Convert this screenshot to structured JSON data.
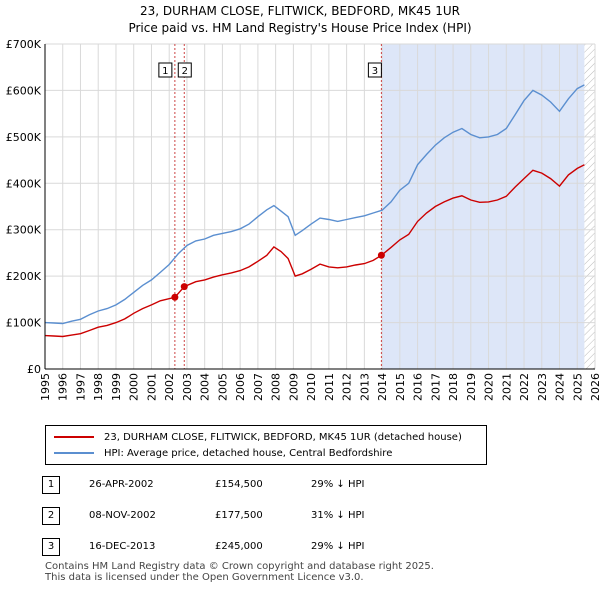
{
  "title": "23, DURHAM CLOSE, FLITWICK, BEDFORD, MK45 1UR",
  "subtitle": "Price paid vs. HM Land Registry's House Price Index (HPI)",
  "chart_data": {
    "type": "line",
    "xlim": [
      1995,
      2026
    ],
    "ylim": [
      0,
      700000
    ],
    "y_ticks": [
      0,
      100000,
      200000,
      300000,
      400000,
      500000,
      600000,
      700000
    ],
    "y_tick_labels": [
      "£0",
      "£100K",
      "£200K",
      "£300K",
      "£400K",
      "£500K",
      "£600K",
      "£700K"
    ],
    "x_ticks": [
      1995,
      1996,
      1997,
      1998,
      1999,
      2000,
      2001,
      2002,
      2003,
      2004,
      2005,
      2006,
      2007,
      2008,
      2009,
      2010,
      2011,
      2012,
      2013,
      2014,
      2015,
      2016,
      2017,
      2018,
      2019,
      2020,
      2021,
      2022,
      2023,
      2024,
      2025,
      2026
    ],
    "grid": true,
    "colors": {
      "price": "#cc0000",
      "hpi": "#5b8fd0",
      "shade": "#dde6f8",
      "marker_line": "#cc4444",
      "grid": "#d9d9d9"
    },
    "series": [
      {
        "name": "23, DURHAM CLOSE, FLITWICK, BEDFORD, MK45 1UR (detached house)",
        "color": "#cc0000",
        "points": [
          [
            1995.0,
            72000
          ],
          [
            1995.5,
            71000
          ],
          [
            1996.0,
            70000
          ],
          [
            1996.5,
            73000
          ],
          [
            1997.0,
            76000
          ],
          [
            1997.5,
            83000
          ],
          [
            1998.0,
            90000
          ],
          [
            1998.5,
            94000
          ],
          [
            1999.0,
            100000
          ],
          [
            1999.5,
            108000
          ],
          [
            2000.0,
            120000
          ],
          [
            2000.5,
            130000
          ],
          [
            2001.0,
            138000
          ],
          [
            2001.5,
            147000
          ],
          [
            2002.32,
            154500
          ],
          [
            2002.85,
            177500
          ],
          [
            2003.5,
            188000
          ],
          [
            2004.0,
            192000
          ],
          [
            2004.5,
            198000
          ],
          [
            2005.0,
            203000
          ],
          [
            2005.5,
            207000
          ],
          [
            2006.0,
            212000
          ],
          [
            2006.5,
            220000
          ],
          [
            2007.0,
            232000
          ],
          [
            2007.5,
            245000
          ],
          [
            2007.9,
            263000
          ],
          [
            2008.3,
            253000
          ],
          [
            2008.7,
            238000
          ],
          [
            2009.1,
            200000
          ],
          [
            2009.5,
            205000
          ],
          [
            2010.0,
            215000
          ],
          [
            2010.5,
            226000
          ],
          [
            2011.0,
            220000
          ],
          [
            2011.5,
            218000
          ],
          [
            2012.0,
            220000
          ],
          [
            2012.5,
            224000
          ],
          [
            2013.0,
            227000
          ],
          [
            2013.5,
            234000
          ],
          [
            2013.96,
            245000
          ],
          [
            2014.5,
            262000
          ],
          [
            2015.0,
            278000
          ],
          [
            2015.5,
            290000
          ],
          [
            2016.0,
            318000
          ],
          [
            2016.5,
            336000
          ],
          [
            2017.0,
            350000
          ],
          [
            2017.5,
            360000
          ],
          [
            2018.0,
            368000
          ],
          [
            2018.5,
            373000
          ],
          [
            2019.0,
            364000
          ],
          [
            2019.5,
            359000
          ],
          [
            2020.0,
            360000
          ],
          [
            2020.5,
            364000
          ],
          [
            2021.0,
            372000
          ],
          [
            2021.5,
            392000
          ],
          [
            2022.0,
            410000
          ],
          [
            2022.5,
            428000
          ],
          [
            2023.0,
            422000
          ],
          [
            2023.5,
            410000
          ],
          [
            2024.0,
            394000
          ],
          [
            2024.5,
            418000
          ],
          [
            2025.0,
            432000
          ],
          [
            2025.4,
            440000
          ]
        ]
      },
      {
        "name": "HPI: Average price, detached house, Central Bedfordshire",
        "color": "#5b8fd0",
        "points": [
          [
            1995.0,
            100000
          ],
          [
            1995.5,
            99000
          ],
          [
            1996.0,
            98000
          ],
          [
            1996.5,
            103000
          ],
          [
            1997.0,
            107000
          ],
          [
            1997.5,
            117000
          ],
          [
            1998.0,
            125000
          ],
          [
            1998.5,
            130000
          ],
          [
            1999.0,
            138000
          ],
          [
            1999.5,
            150000
          ],
          [
            2000.0,
            165000
          ],
          [
            2000.5,
            180000
          ],
          [
            2001.0,
            192000
          ],
          [
            2001.5,
            208000
          ],
          [
            2002.0,
            225000
          ],
          [
            2002.5,
            248000
          ],
          [
            2003.0,
            266000
          ],
          [
            2003.5,
            276000
          ],
          [
            2004.0,
            280000
          ],
          [
            2004.5,
            288000
          ],
          [
            2005.0,
            292000
          ],
          [
            2005.5,
            296000
          ],
          [
            2006.0,
            302000
          ],
          [
            2006.5,
            312000
          ],
          [
            2007.0,
            328000
          ],
          [
            2007.5,
            343000
          ],
          [
            2007.9,
            352000
          ],
          [
            2008.3,
            340000
          ],
          [
            2008.7,
            328000
          ],
          [
            2009.1,
            288000
          ],
          [
            2009.5,
            298000
          ],
          [
            2010.0,
            312000
          ],
          [
            2010.5,
            325000
          ],
          [
            2011.0,
            322000
          ],
          [
            2011.5,
            318000
          ],
          [
            2012.0,
            322000
          ],
          [
            2012.5,
            326000
          ],
          [
            2013.0,
            330000
          ],
          [
            2013.5,
            336000
          ],
          [
            2014.0,
            342000
          ],
          [
            2014.5,
            360000
          ],
          [
            2015.0,
            385000
          ],
          [
            2015.5,
            400000
          ],
          [
            2016.0,
            440000
          ],
          [
            2016.5,
            462000
          ],
          [
            2017.0,
            482000
          ],
          [
            2017.5,
            498000
          ],
          [
            2018.0,
            510000
          ],
          [
            2018.5,
            518000
          ],
          [
            2019.0,
            505000
          ],
          [
            2019.5,
            498000
          ],
          [
            2020.0,
            500000
          ],
          [
            2020.5,
            505000
          ],
          [
            2021.0,
            518000
          ],
          [
            2021.5,
            548000
          ],
          [
            2022.0,
            578000
          ],
          [
            2022.5,
            600000
          ],
          [
            2023.0,
            590000
          ],
          [
            2023.5,
            575000
          ],
          [
            2024.0,
            555000
          ],
          [
            2024.5,
            582000
          ],
          [
            2025.0,
            604000
          ],
          [
            2025.4,
            612000
          ]
        ]
      }
    ],
    "sales": [
      {
        "label": "1",
        "x": 2002.32,
        "price": 154500
      },
      {
        "label": "2",
        "x": 2002.85,
        "price": 177500
      },
      {
        "label": "3",
        "x": 2013.96,
        "price": 245000
      }
    ],
    "shaded_range": [
      2013.96,
      2025.4
    ]
  },
  "legend": {
    "price_label": "23, DURHAM CLOSE, FLITWICK, BEDFORD, MK45 1UR (detached house)",
    "hpi_label": "HPI: Average price, detached house, Central Bedfordshire"
  },
  "transactions": [
    {
      "num": "1",
      "date": "26-APR-2002",
      "price": "£154,500",
      "rel": "29% ↓ HPI"
    },
    {
      "num": "2",
      "date": "08-NOV-2002",
      "price": "£177,500",
      "rel": "31% ↓ HPI"
    },
    {
      "num": "3",
      "date": "16-DEC-2013",
      "price": "£245,000",
      "rel": "29% ↓ HPI"
    }
  ],
  "footer": {
    "line1": "Contains HM Land Registry data © Crown copyright and database right 2025.",
    "line2": "This data is licensed under the Open Government Licence v3.0."
  }
}
